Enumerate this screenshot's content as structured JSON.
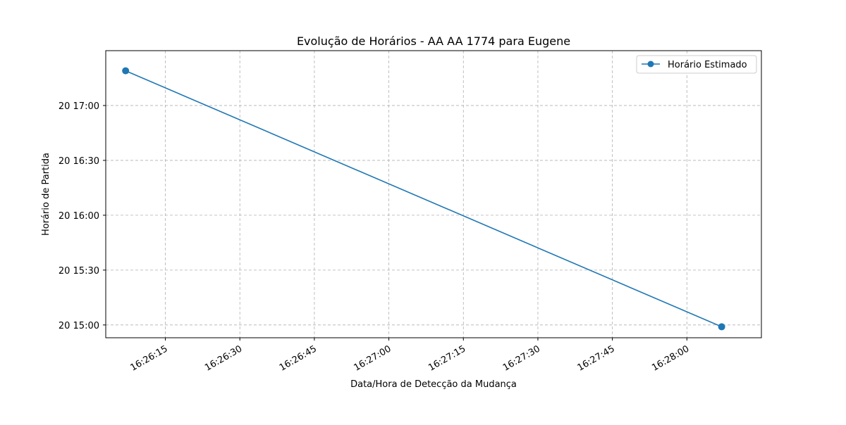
{
  "chart_data": {
    "type": "line",
    "title": "Evolução de Horários - AA AA 1774 para Eugene",
    "xlabel": "Data/Hora de Detecção da Mudança",
    "ylabel": "Horário de Partida",
    "x_ticks": [
      "16:26:15",
      "16:26:30",
      "16:26:45",
      "16:27:00",
      "16:27:15",
      "16:27:30",
      "16:27:45",
      "16:28:00"
    ],
    "y_ticks": [
      "20 15:00",
      "20 15:30",
      "20 16:00",
      "20 16:30",
      "20 17:00"
    ],
    "xlim": [
      "16:26:03",
      "16:28:15"
    ],
    "ylim": [
      "20 14:53",
      "20 17:30"
    ],
    "grid": true,
    "legend_position": "top-right",
    "series": [
      {
        "name": "Horário Estimado",
        "color": "#1f77b4",
        "marker": "circle",
        "x": [
          "16:26:07",
          "16:28:07"
        ],
        "y": [
          "20 17:19",
          "20 14:59"
        ]
      }
    ]
  }
}
